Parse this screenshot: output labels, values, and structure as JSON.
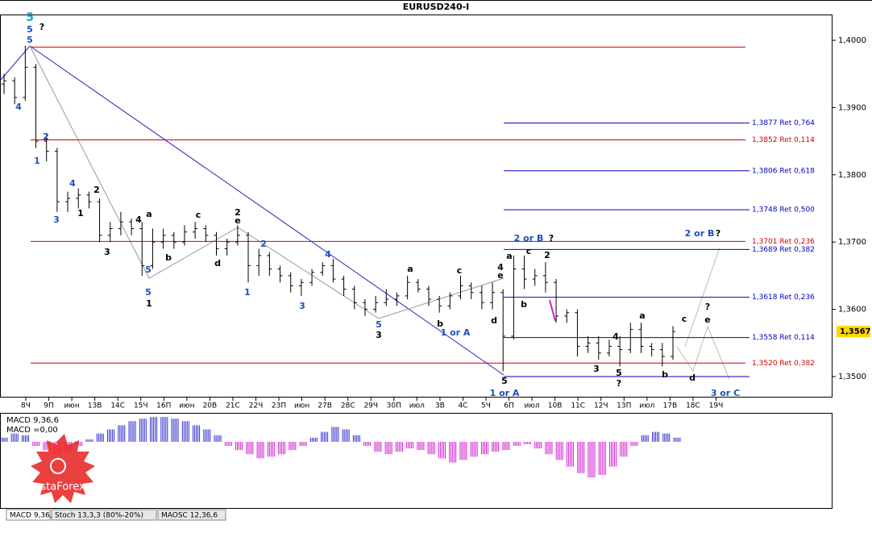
{
  "chart_data": [
    {
      "type": "ohlc",
      "title": "EURUSD240-I",
      "color": "#000000",
      "ylim": [
        1.347,
        1.40384
      ],
      "yticks": [
        {
          "value": 1.35,
          "label": "1,3500"
        },
        {
          "value": 1.36,
          "label": "1,3600"
        },
        {
          "value": 1.37,
          "label": "1,3700"
        },
        {
          "value": 1.38,
          "label": "1,3800"
        },
        {
          "value": 1.39,
          "label": "1,3900"
        },
        {
          "value": 1.4,
          "label": "1,4000"
        }
      ],
      "x_labels": [
        "8Ч",
        "9П",
        "июн",
        "13В",
        "14С",
        "15Ч",
        "16П",
        "июн",
        "20В",
        "21С",
        "22Ч",
        "23П",
        "июн",
        "27В",
        "28С",
        "29Ч",
        "30П",
        "июл",
        "3В",
        "4С",
        "5Ч",
        "6П",
        "июл",
        "10В",
        "11С",
        "12Ч",
        "13П",
        "июл",
        "17В",
        "18С",
        "19Ч"
      ],
      "open": [
        1.3935,
        1.394,
        1.3915,
        1.396,
        1.385,
        1.3835,
        1.376,
        1.3765,
        1.377,
        1.376,
        1.371,
        1.372,
        1.373,
        1.372,
        1.3665,
        1.37,
        1.371,
        1.37,
        1.3715,
        1.372,
        1.371,
        1.369,
        1.37,
        1.371,
        1.3665,
        1.368,
        1.366,
        1.365,
        1.3635,
        1.364,
        1.3655,
        1.3665,
        1.3645,
        1.363,
        1.361,
        1.36,
        1.361,
        1.3615,
        1.362,
        1.364,
        1.363,
        1.3615,
        1.3605,
        1.362,
        1.3635,
        1.3625,
        1.361,
        1.3625,
        1.356,
        1.366,
        1.3645,
        1.365,
        1.364,
        1.359,
        1.3595,
        1.3545,
        1.355,
        1.3535,
        1.3545,
        1.354,
        1.357,
        1.3545,
        1.354,
        1.353
      ],
      "high": [
        1.395,
        1.3945,
        1.3992,
        1.3965,
        1.386,
        1.384,
        1.3775,
        1.378,
        1.3775,
        1.3765,
        1.373,
        1.3745,
        1.3735,
        1.373,
        1.372,
        1.372,
        1.3715,
        1.3725,
        1.373,
        1.3725,
        1.3715,
        1.3705,
        1.3725,
        1.3715,
        1.369,
        1.3685,
        1.3665,
        1.3655,
        1.3645,
        1.366,
        1.367,
        1.3675,
        1.365,
        1.3635,
        1.3615,
        1.362,
        1.363,
        1.3625,
        1.365,
        1.3645,
        1.3635,
        1.362,
        1.3625,
        1.365,
        1.364,
        1.3635,
        1.364,
        1.363,
        1.368,
        1.368,
        1.366,
        1.367,
        1.3645,
        1.36,
        1.36,
        1.356,
        1.356,
        1.3555,
        1.356,
        1.358,
        1.358,
        1.355,
        1.355,
        1.3575
      ],
      "low": [
        1.392,
        1.3905,
        1.391,
        1.384,
        1.382,
        1.3745,
        1.3745,
        1.375,
        1.375,
        1.37,
        1.37,
        1.371,
        1.371,
        1.365,
        1.366,
        1.369,
        1.369,
        1.3695,
        1.3705,
        1.37,
        1.368,
        1.368,
        1.3695,
        1.364,
        1.365,
        1.365,
        1.364,
        1.3625,
        1.362,
        1.3635,
        1.365,
        1.364,
        1.362,
        1.36,
        1.359,
        1.3595,
        1.3605,
        1.3605,
        1.3615,
        1.3625,
        1.3605,
        1.3595,
        1.36,
        1.3615,
        1.3615,
        1.36,
        1.36,
        1.3508,
        1.3555,
        1.363,
        1.3635,
        1.3625,
        1.358,
        1.358,
        1.353,
        1.3535,
        1.3525,
        1.353,
        1.3515,
        1.3535,
        1.3535,
        1.353,
        1.3515,
        1.3525
      ],
      "close": [
        1.394,
        1.3915,
        1.396,
        1.385,
        1.3835,
        1.376,
        1.3765,
        1.377,
        1.376,
        1.371,
        1.372,
        1.373,
        1.372,
        1.3665,
        1.37,
        1.371,
        1.37,
        1.3715,
        1.372,
        1.371,
        1.369,
        1.37,
        1.371,
        1.3665,
        1.368,
        1.366,
        1.365,
        1.3635,
        1.364,
        1.3655,
        1.3665,
        1.3645,
        1.363,
        1.361,
        1.36,
        1.361,
        1.3615,
        1.362,
        1.364,
        1.363,
        1.3615,
        1.3605,
        1.362,
        1.3635,
        1.3625,
        1.361,
        1.3625,
        1.356,
        1.366,
        1.3645,
        1.365,
        1.364,
        1.359,
        1.3595,
        1.3545,
        1.355,
        1.3535,
        1.3545,
        1.354,
        1.357,
        1.3545,
        1.354,
        1.353,
        1.3567
      ],
      "levels": [
        {
          "value": 1.399,
          "color": "#d00000"
        },
        {
          "value": 1.3877,
          "label": "1,3877 Ret 0,764",
          "color": "#0000c0"
        },
        {
          "value": 1.3852,
          "label": "1,3852 Ret 0,114",
          "color": "#d00000"
        },
        {
          "value": 1.3806,
          "label": "1,3806 Ret 0,618",
          "color": "#0000c0"
        },
        {
          "value": 1.3748,
          "label": "1,3748 Ret 0,500",
          "color": "#0000c0"
        },
        {
          "value": 1.3701,
          "label": "1,3701 Ret 0,236",
          "color": "#d00000"
        },
        {
          "value": 1.3689,
          "label": "1,3689 Ret 0,382",
          "color": "#0000c0"
        },
        {
          "value": 1.3618,
          "label": "1,3618 Ret 0,236",
          "color": "#0000c0"
        },
        {
          "value": 1.3558,
          "label": "1,3558 Ret 0,114",
          "color": "#0000c0"
        },
        {
          "value": 1.352,
          "label": "1,3520 Ret 0,382",
          "color": "#d00000"
        },
        {
          "value": 1.35,
          "color": "#0000c0"
        }
      ],
      "current": {
        "value": 1.3567,
        "label": "1,3567"
      },
      "annotations": [
        {
          "text": "5",
          "color": "#1a9fd0"
        },
        {
          "text": "5",
          "color": "#1a4fc0"
        },
        {
          "text": "5",
          "color": "#1a4fc0"
        },
        {
          "text": "?",
          "color": "#000"
        },
        {
          "text": "4",
          "color": "#1a4fc0"
        },
        {
          "text": "2",
          "color": "#1a4fc0"
        },
        {
          "text": "1",
          "color": "#1a4fc0"
        },
        {
          "text": "4",
          "color": "#1a4fc0"
        },
        {
          "text": "3",
          "color": "#1a4fc0"
        },
        {
          "text": "1",
          "color": "#000"
        },
        {
          "text": "2",
          "color": "#000"
        },
        {
          "text": "3",
          "color": "#000"
        },
        {
          "text": "4",
          "color": "#000"
        },
        {
          "text": "a",
          "color": "#000"
        },
        {
          "text": "5",
          "color": "#1a4fc0"
        },
        {
          "text": "5",
          "color": "#1a4fc0"
        },
        {
          "text": "1",
          "color": "#000"
        },
        {
          "text": "b",
          "color": "#000"
        },
        {
          "text": "c",
          "color": "#000"
        },
        {
          "text": "d",
          "color": "#000"
        },
        {
          "text": "2",
          "color": "#000"
        },
        {
          "text": "e",
          "color": "#000"
        },
        {
          "text": "2",
          "color": "#1a4fc0"
        },
        {
          "text": "1",
          "color": "#1a4fc0"
        },
        {
          "text": "4",
          "color": "#1a4fc0"
        },
        {
          "text": "3",
          "color": "#1a4fc0"
        },
        {
          "text": "5",
          "color": "#1a4fc0"
        },
        {
          "text": "3",
          "color": "#000"
        },
        {
          "text": "a",
          "color": "#000"
        },
        {
          "text": "b",
          "color": "#000"
        },
        {
          "text": "c",
          "color": "#000"
        },
        {
          "text": "d",
          "color": "#000"
        },
        {
          "text": "1 or A",
          "color": "#1a4fc0"
        },
        {
          "text": "4",
          "color": "#000"
        },
        {
          "text": "e",
          "color": "#000"
        },
        {
          "text": "a",
          "color": "#000"
        },
        {
          "text": "c",
          "color": "#000"
        },
        {
          "text": "2",
          "color": "#000"
        },
        {
          "text": "b",
          "color": "#000"
        },
        {
          "text": "2 or B",
          "color": "#1a4fc0"
        },
        {
          "text": "?",
          "color": "#000"
        },
        {
          "text": "5",
          "color": "#000"
        },
        {
          "text": "1 or A",
          "color": "#1a4fc0"
        },
        {
          "text": "3",
          "color": "#000"
        },
        {
          "text": "5",
          "color": "#000"
        },
        {
          "text": "?",
          "color": "#000"
        },
        {
          "text": "4",
          "color": "#000"
        },
        {
          "text": "a",
          "color": "#000"
        },
        {
          "text": "b",
          "color": "#000"
        },
        {
          "text": "c",
          "color": "#000"
        },
        {
          "text": "d",
          "color": "#000"
        },
        {
          "text": "e",
          "color": "#000"
        },
        {
          "text": "?",
          "color": "#000"
        },
        {
          "text": "2 or B",
          "color": "#1a4fc0"
        },
        {
          "text": "?",
          "color": "#000"
        },
        {
          "text": "3 or C",
          "color": "#1a4fc0"
        }
      ]
    },
    {
      "type": "histogram",
      "label": "MACD 9,36,6",
      "value_label": "MACD =0,00",
      "ylim": [
        -0.008,
        0.0035
      ],
      "pos_color": "#3030d0",
      "neg_color": "#d020d0",
      "values": [
        0.0005,
        0.001,
        0.0008,
        -0.0005,
        -0.001,
        -0.0015,
        -0.0012,
        -0.0005,
        0.0003,
        0.001,
        0.0015,
        0.002,
        0.0025,
        0.0028,
        0.003,
        0.003,
        0.0028,
        0.0025,
        0.002,
        0.0015,
        0.0008,
        -0.0005,
        -0.001,
        -0.0015,
        -0.002,
        -0.0018,
        -0.0015,
        -0.001,
        -0.0005,
        0.0005,
        0.0012,
        0.0018,
        0.0015,
        0.0008,
        -0.0005,
        -0.0012,
        -0.0015,
        -0.0012,
        -0.0008,
        -0.001,
        -0.0015,
        -0.002,
        -0.0025,
        -0.0022,
        -0.0018,
        -0.0015,
        -0.0012,
        -0.001,
        -0.0005,
        -0.0003,
        -0.0008,
        -0.0015,
        -0.0022,
        -0.003,
        -0.0038,
        -0.0043,
        -0.004,
        -0.003,
        -0.0018,
        -0.0005,
        0.0008,
        0.0012,
        0.001,
        0.0005
      ]
    }
  ],
  "tabs": [
    "MACD 9,36,6",
    "Stoch 13,3,3 (80%-20%)",
    "MAOSC 12,36,6"
  ],
  "logo": "InstaForex"
}
